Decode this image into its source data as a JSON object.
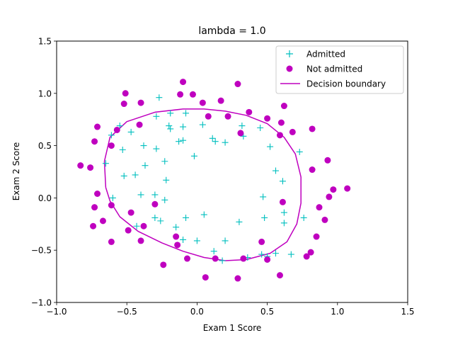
{
  "chart_data": {
    "type": "scatter",
    "title": "lambda = 1.0",
    "xlabel": "Exam 1 Score",
    "ylabel": "Exam 2 Score",
    "xlim": [
      -1.0,
      1.5
    ],
    "ylim": [
      -1.0,
      1.5
    ],
    "xticks": [
      -1.0,
      -0.5,
      0.0,
      0.5,
      1.0,
      1.5
    ],
    "yticks": [
      -1.0,
      -0.5,
      0.0,
      0.5,
      1.0,
      1.5
    ],
    "xtick_labels": [
      "−1.0",
      "−0.5",
      "0.0",
      "0.5",
      "1.0",
      "1.5"
    ],
    "ytick_labels": [
      "−1.0",
      "−0.5",
      "0.0",
      "0.5",
      "1.0",
      "1.5"
    ],
    "grid": false,
    "legend_position": "top-right",
    "colors": {
      "admitted": "#00bfbf",
      "not_admitted": "#bf00bf",
      "boundary": "#bf00bf"
    },
    "series": [
      {
        "name": "Admitted",
        "marker": "plus",
        "points": [
          [
            -0.27,
            0.96
          ],
          [
            -0.19,
            0.81
          ],
          [
            -0.08,
            0.81
          ],
          [
            -0.29,
            0.78
          ],
          [
            -0.55,
            0.69
          ],
          [
            -0.2,
            0.69
          ],
          [
            -0.19,
            0.66
          ],
          [
            -0.1,
            0.68
          ],
          [
            0.04,
            0.7
          ],
          [
            -0.47,
            0.63
          ],
          [
            -0.61,
            0.6
          ],
          [
            0.11,
            0.57
          ],
          [
            0.13,
            0.54
          ],
          [
            0.2,
            0.53
          ],
          [
            0.32,
            0.69
          ],
          [
            0.33,
            0.59
          ],
          [
            0.45,
            0.67
          ],
          [
            -0.13,
            0.54
          ],
          [
            -0.1,
            0.55
          ],
          [
            -0.38,
            0.5
          ],
          [
            -0.29,
            0.47
          ],
          [
            -0.53,
            0.46
          ],
          [
            0.52,
            0.49
          ],
          [
            0.73,
            0.44
          ],
          [
            -0.02,
            0.4
          ],
          [
            -0.23,
            0.35
          ],
          [
            -0.65,
            0.33
          ],
          [
            -0.37,
            0.31
          ],
          [
            -0.52,
            0.21
          ],
          [
            -0.44,
            0.22
          ],
          [
            0.56,
            0.26
          ],
          [
            0.61,
            0.16
          ],
          [
            -0.22,
            0.17
          ],
          [
            -0.6,
            0.0
          ],
          [
            -0.4,
            0.03
          ],
          [
            -0.3,
            0.03
          ],
          [
            -0.23,
            -0.02
          ],
          [
            0.47,
            0.01
          ],
          [
            0.62,
            -0.14
          ],
          [
            0.05,
            -0.16
          ],
          [
            -0.08,
            -0.19
          ],
          [
            0.48,
            -0.19
          ],
          [
            0.76,
            -0.19
          ],
          [
            -0.3,
            -0.19
          ],
          [
            -0.26,
            -0.22
          ],
          [
            0.62,
            -0.24
          ],
          [
            -0.15,
            -0.28
          ],
          [
            -0.43,
            -0.27
          ],
          [
            0.3,
            -0.23
          ],
          [
            0.0,
            -0.41
          ],
          [
            0.2,
            -0.41
          ],
          [
            -0.1,
            -0.4
          ],
          [
            0.12,
            -0.51
          ],
          [
            0.46,
            -0.54
          ],
          [
            0.56,
            -0.53
          ],
          [
            0.67,
            -0.54
          ],
          [
            0.18,
            -0.6
          ],
          [
            0.36,
            -0.57
          ],
          [
            0.5,
            -0.56
          ]
        ]
      },
      {
        "name": "Not admitted",
        "marker": "circle",
        "points": [
          [
            -0.1,
            1.11
          ],
          [
            0.29,
            1.09
          ],
          [
            -0.51,
            1.0
          ],
          [
            -0.12,
            0.99
          ],
          [
            -0.03,
            0.99
          ],
          [
            -0.52,
            0.9
          ],
          [
            -0.4,
            0.91
          ],
          [
            0.04,
            0.91
          ],
          [
            0.17,
            0.93
          ],
          [
            0.62,
            0.88
          ],
          [
            0.37,
            0.82
          ],
          [
            0.08,
            0.78
          ],
          [
            0.22,
            0.78
          ],
          [
            0.5,
            0.76
          ],
          [
            0.6,
            0.72
          ],
          [
            -0.71,
            0.68
          ],
          [
            -0.57,
            0.65
          ],
          [
            -0.41,
            0.7
          ],
          [
            0.82,
            0.66
          ],
          [
            0.68,
            0.63
          ],
          [
            0.59,
            0.6
          ],
          [
            0.31,
            0.62
          ],
          [
            -0.73,
            0.54
          ],
          [
            -0.61,
            0.5
          ],
          [
            -0.83,
            0.31
          ],
          [
            -0.76,
            0.29
          ],
          [
            0.93,
            0.36
          ],
          [
            0.82,
            0.27
          ],
          [
            0.97,
            0.08
          ],
          [
            1.07,
            0.09
          ],
          [
            -0.71,
            0.04
          ],
          [
            0.94,
            0.01
          ],
          [
            -0.73,
            -0.09
          ],
          [
            -0.61,
            -0.07
          ],
          [
            -0.3,
            -0.06
          ],
          [
            0.61,
            -0.04
          ],
          [
            0.87,
            -0.09
          ],
          [
            -0.47,
            -0.14
          ],
          [
            0.91,
            -0.21
          ],
          [
            -0.67,
            -0.22
          ],
          [
            -0.74,
            -0.27
          ],
          [
            -0.49,
            -0.31
          ],
          [
            -0.38,
            -0.27
          ],
          [
            0.85,
            -0.37
          ],
          [
            -0.61,
            -0.42
          ],
          [
            -0.4,
            -0.41
          ],
          [
            -0.15,
            -0.37
          ],
          [
            0.46,
            -0.42
          ],
          [
            -0.14,
            -0.45
          ],
          [
            0.81,
            -0.52
          ],
          [
            0.78,
            -0.56
          ],
          [
            -0.07,
            -0.58
          ],
          [
            0.13,
            -0.58
          ],
          [
            0.33,
            -0.58
          ],
          [
            0.5,
            -0.59
          ],
          [
            0.59,
            -0.74
          ],
          [
            -0.24,
            -0.64
          ],
          [
            0.06,
            -0.76
          ],
          [
            0.29,
            -0.77
          ]
        ]
      },
      {
        "name": "Decision boundary",
        "type": "line",
        "points": [
          [
            -0.65,
            0.1
          ],
          [
            -0.66,
            0.35
          ],
          [
            -0.62,
            0.58
          ],
          [
            -0.5,
            0.73
          ],
          [
            -0.3,
            0.82
          ],
          [
            -0.1,
            0.85
          ],
          [
            0.05,
            0.85
          ],
          [
            0.2,
            0.83
          ],
          [
            0.35,
            0.79
          ],
          [
            0.5,
            0.71
          ],
          [
            0.62,
            0.58
          ],
          [
            0.7,
            0.42
          ],
          [
            0.74,
            0.2
          ],
          [
            0.74,
            -0.05
          ],
          [
            0.71,
            -0.25
          ],
          [
            0.64,
            -0.42
          ],
          [
            0.52,
            -0.53
          ],
          [
            0.35,
            -0.59
          ],
          [
            0.2,
            -0.6
          ],
          [
            0.05,
            -0.57
          ],
          [
            -0.1,
            -0.51
          ],
          [
            -0.25,
            -0.43
          ],
          [
            -0.42,
            -0.32
          ],
          [
            -0.55,
            -0.18
          ],
          [
            -0.62,
            -0.03
          ],
          [
            -0.65,
            0.1
          ]
        ]
      }
    ]
  }
}
